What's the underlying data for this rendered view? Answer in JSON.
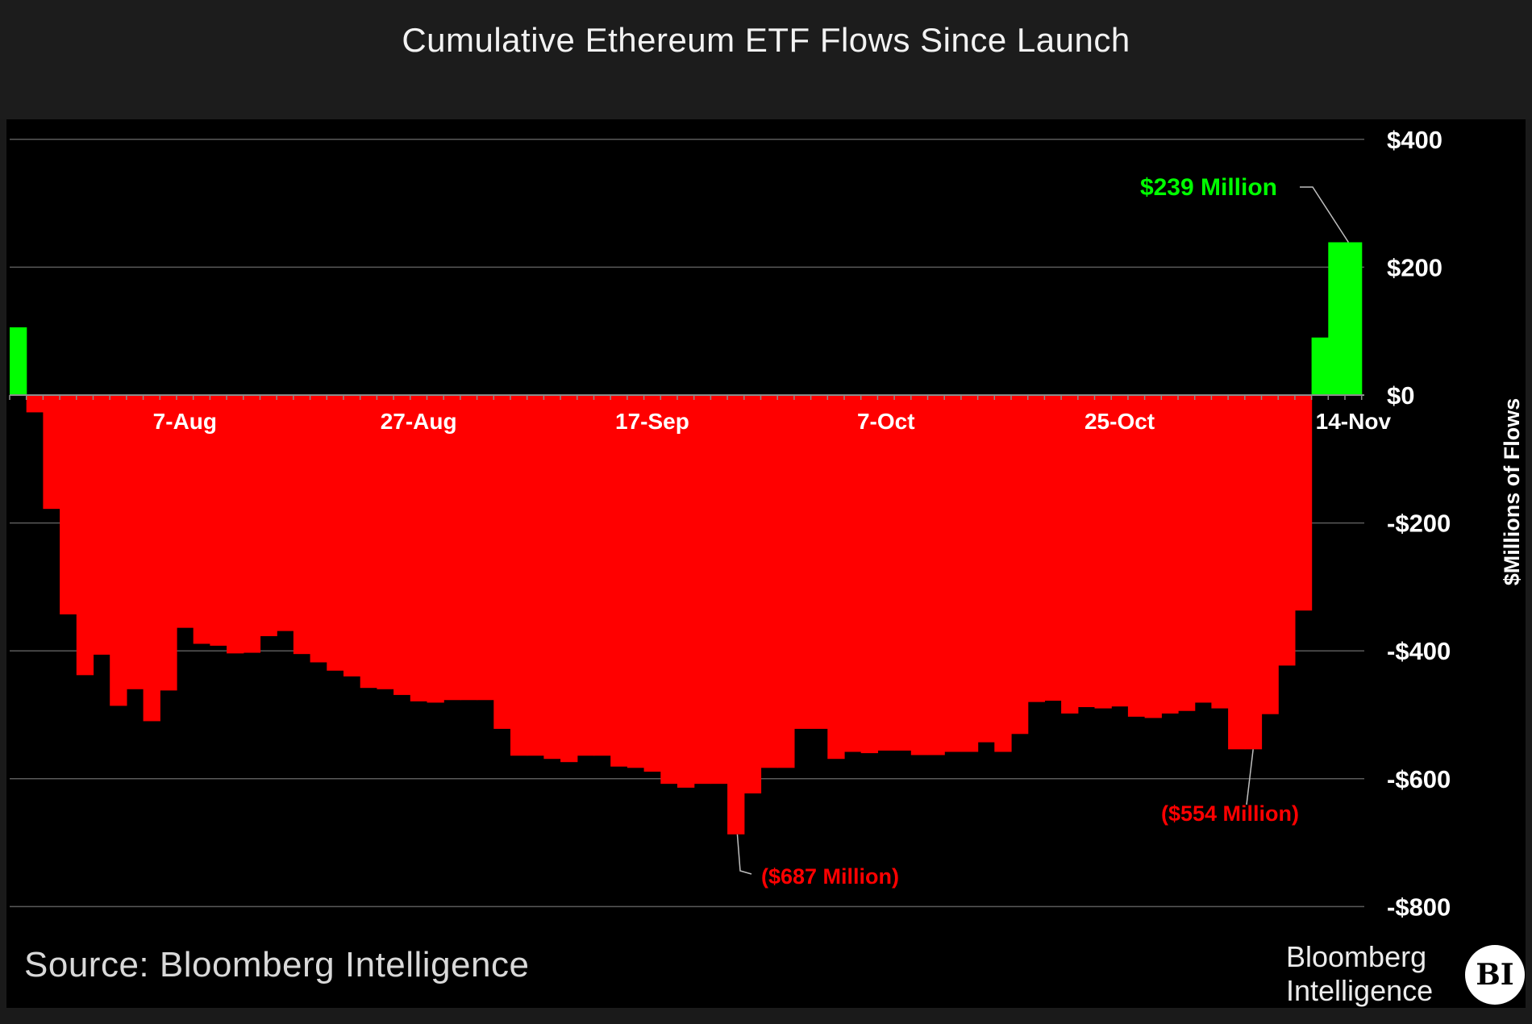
{
  "chart_data": {
    "type": "bar",
    "title": "Cumulative Ethereum ETF Flows Since Launch",
    "ylabel": "$Millions of Flows",
    "ylim": [
      -800,
      400
    ],
    "yticks": [
      {
        "value": 400,
        "label": "$400"
      },
      {
        "value": 200,
        "label": "$200"
      },
      {
        "value": 0,
        "label": "$0"
      },
      {
        "value": -200,
        "label": "-$200"
      },
      {
        "value": -400,
        "label": "-$400"
      },
      {
        "value": -600,
        "label": "-$600"
      },
      {
        "value": -800,
        "label": "-$800"
      }
    ],
    "xticks": [
      {
        "index": 10,
        "label": "7-Aug"
      },
      {
        "index": 24,
        "label": "27-Aug"
      },
      {
        "index": 38,
        "label": "17-Sep"
      },
      {
        "index": 52,
        "label": "7-Oct"
      },
      {
        "index": 66,
        "label": "25-Oct"
      },
      {
        "index": 80,
        "label": "14-Nov"
      }
    ],
    "grid": true,
    "positive_color": "#00ff00",
    "negative_color": "#ff0000",
    "values": [
      106,
      -27,
      -178,
      -343,
      -438,
      -406,
      -486,
      -460,
      -510,
      -462,
      -364,
      -389,
      -392,
      -404,
      -403,
      -377,
      -369,
      -405,
      -418,
      -431,
      -440,
      -458,
      -460,
      -469,
      -479,
      -481,
      -477,
      -477,
      -477,
      -522,
      -564,
      -564,
      -569,
      -574,
      -564,
      -564,
      -581,
      -583,
      -589,
      -608,
      -614,
      -608,
      -608,
      -687,
      -623,
      -583,
      -583,
      -522,
      -522,
      -569,
      -558,
      -560,
      -556,
      -556,
      -563,
      -563,
      -558,
      -558,
      -543,
      -558,
      -530,
      -480,
      -478,
      -498,
      -488,
      -490,
      -487,
      -503,
      -505,
      -498,
      -494,
      -481,
      -490,
      -554,
      -554,
      -499,
      -423,
      -337,
      90,
      239,
      239
    ],
    "annotations": [
      {
        "text": "$239 Million",
        "index": 80,
        "value": 239,
        "color": "#00ff00"
      },
      {
        "text": "($687 Million)",
        "index": 43,
        "value": -687,
        "color": "#ff0000"
      },
      {
        "text": "($554 Million)",
        "index": 74,
        "value": -554,
        "color": "#ff0000"
      }
    ]
  },
  "footer": {
    "source": "Source: Bloomberg Intelligence",
    "brand_line1": "Bloomberg",
    "brand_line2": "Intelligence",
    "logo_text": "BI"
  }
}
